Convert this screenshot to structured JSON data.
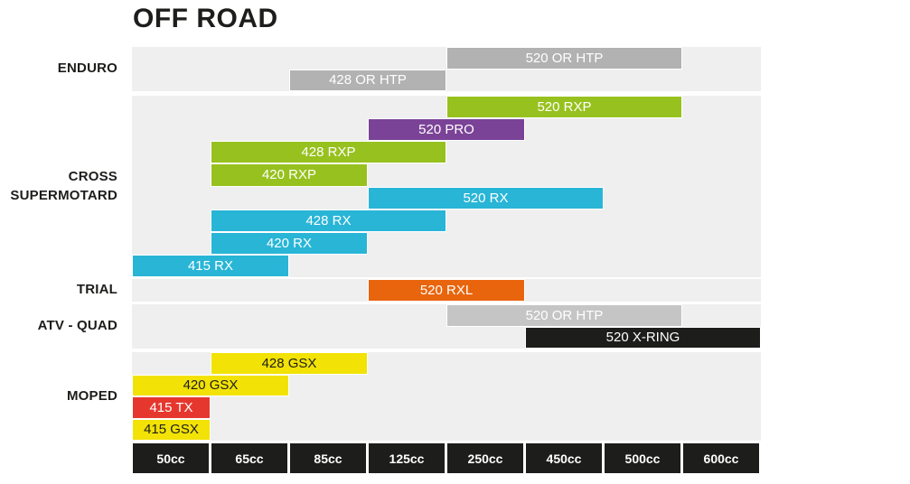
{
  "chart_data": {
    "type": "range-bar",
    "title": "OFF ROAD",
    "x_categories": [
      "50cc",
      "65cc",
      "85cc",
      "125cc",
      "250cc",
      "450cc",
      "500cc",
      "600cc"
    ],
    "legend": "none",
    "grid": "off",
    "palette": {
      "band_bg": "#efefef",
      "axis_bg": "#1d1d1b",
      "gray": "#b2b2b2",
      "gray_light": "#c5c5c5",
      "green": "#97c11e",
      "purple": "#7b4397",
      "cyan": "#29b5d6",
      "orange": "#e8650d",
      "black": "#1d1d1b",
      "yellow": "#f2e205",
      "red": "#e6372e",
      "text_light": "#ffffff",
      "text_dark": "#1d1d1b"
    },
    "sections": [
      {
        "label_lines": [
          "ENDURO"
        ],
        "rows": 2,
        "bars": [
          {
            "name": "520 OR HTP",
            "row": 0,
            "from": "250cc",
            "to": "500cc",
            "color": "gray",
            "text": "light"
          },
          {
            "name": "428 OR HTP",
            "row": 1,
            "from": "85cc",
            "to": "125cc",
            "color": "gray",
            "text": "light"
          }
        ]
      },
      {
        "label_lines": [
          "CROSS",
          "SUPERMOTARD"
        ],
        "rows": 8,
        "bars": [
          {
            "name": "520 RXP",
            "row": 0,
            "from": "250cc",
            "to": "500cc",
            "color": "green",
            "text": "light"
          },
          {
            "name": "520 PRO",
            "row": 1,
            "from": "125cc",
            "to": "250cc",
            "color": "purple",
            "text": "light"
          },
          {
            "name": "428 RXP",
            "row": 2,
            "from": "65cc",
            "to": "125cc",
            "color": "green",
            "text": "light"
          },
          {
            "name": "420 RXP",
            "row": 3,
            "from": "65cc",
            "to": "85cc",
            "color": "green",
            "text": "light"
          },
          {
            "name": "520 RX",
            "row": 4,
            "from": "125cc",
            "to": "450cc",
            "color": "cyan",
            "text": "light"
          },
          {
            "name": "428 RX",
            "row": 5,
            "from": "65cc",
            "to": "125cc",
            "color": "cyan",
            "text": "light"
          },
          {
            "name": "420 RX",
            "row": 6,
            "from": "65cc",
            "to": "85cc",
            "color": "cyan",
            "text": "light"
          },
          {
            "name": "415 RX",
            "row": 7,
            "from": "50cc",
            "to": "65cc",
            "color": "cyan",
            "text": "light"
          }
        ]
      },
      {
        "label_lines": [
          "TRIAL"
        ],
        "rows": 1,
        "bars": [
          {
            "name": "520 RXL",
            "row": 0,
            "from": "125cc",
            "to": "250cc",
            "color": "orange",
            "text": "light"
          }
        ]
      },
      {
        "label_lines": [
          "ATV - QUAD"
        ],
        "rows": 2,
        "bars": [
          {
            "name": "520 OR HTP",
            "row": 0,
            "from": "250cc",
            "to": "500cc",
            "color": "gray_light",
            "text": "light"
          },
          {
            "name": "520 X-RING",
            "row": 1,
            "from": "450cc",
            "to": "600cc",
            "color": "black",
            "text": "light"
          }
        ]
      },
      {
        "label_lines": [
          "MOPED"
        ],
        "rows": 4,
        "bars": [
          {
            "name": "428 GSX",
            "row": 0,
            "from": "65cc",
            "to": "85cc",
            "color": "yellow",
            "text": "dark"
          },
          {
            "name": "420 GSX",
            "row": 1,
            "from": "50cc",
            "to": "65cc",
            "color": "yellow",
            "text": "dark"
          },
          {
            "name": "415 TX",
            "row": 2,
            "from": "50cc",
            "to": "50cc",
            "color": "red",
            "text": "light"
          },
          {
            "name": "415 GSX",
            "row": 3,
            "from": "50cc",
            "to": "50cc",
            "color": "yellow",
            "text": "dark"
          }
        ]
      }
    ]
  }
}
